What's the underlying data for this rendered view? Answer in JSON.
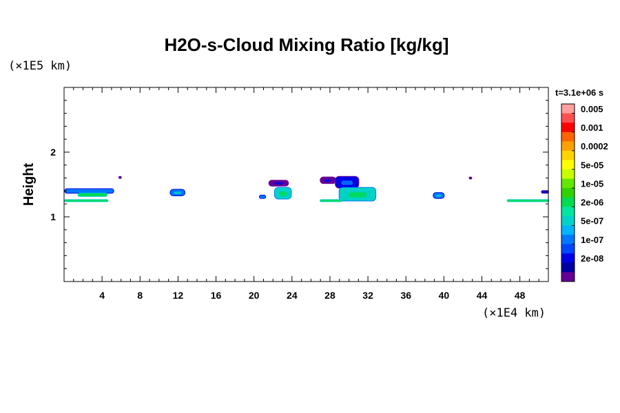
{
  "chart_data": {
    "type": "heatmap",
    "title": "H2O-s-Cloud Mixing Ratio [kg/kg]",
    "ylabel": "Height",
    "x_unit": "(×1E4 km)",
    "y_unit": "(×1E5 km)",
    "time_label": "t=3.1e+06 s",
    "xlim": [
      0,
      51
    ],
    "ylim": [
      0,
      3
    ],
    "xticks": [
      4,
      8,
      12,
      16,
      20,
      24,
      28,
      32,
      36,
      40,
      44,
      48
    ],
    "yticks": [
      1,
      2
    ],
    "colorbar": {
      "labels": [
        "0.005",
        "0.001",
        "0.0002",
        "5e-05",
        "1e-05",
        "2e-06",
        "5e-07",
        "1e-07",
        "2e-08"
      ],
      "colors": [
        "#ffa0a0",
        "#ff5050",
        "#ff0000",
        "#ff6400",
        "#ffa000",
        "#ffd200",
        "#ffff00",
        "#c8ff00",
        "#64e600",
        "#32d200",
        "#00dc50",
        "#00e6a0",
        "#00d2c8",
        "#00b4ff",
        "#0078ff",
        "#0046ff",
        "#0000e6",
        "#0000a0",
        "#640096"
      ]
    },
    "cloud_features": [
      {
        "x": [
          0.1,
          5.2
        ],
        "y": [
          1.37,
          1.43
        ],
        "level": "5e-07"
      },
      {
        "x": [
          1.5,
          4.5
        ],
        "y": [
          1.32,
          1.36
        ],
        "level": "1e-05"
      },
      {
        "x": [
          0.1,
          4.6
        ],
        "y": [
          1.24,
          1.26
        ],
        "level": "1e-05"
      },
      {
        "x": [
          11.2,
          12.7
        ],
        "y": [
          1.33,
          1.42
        ],
        "level": "5e-07"
      },
      {
        "x": [
          21.6,
          23.6
        ],
        "y": [
          1.48,
          1.56
        ],
        "level": "2e-08"
      },
      {
        "x": [
          22.2,
          23.9
        ],
        "y": [
          1.28,
          1.45
        ],
        "level": "2e-06"
      },
      {
        "x": [
          20.6,
          21.2
        ],
        "y": [
          1.29,
          1.33
        ],
        "level": "5e-07"
      },
      {
        "x": [
          27.0,
          28.6
        ],
        "y": [
          1.52,
          1.61
        ],
        "level": "2e-08"
      },
      {
        "x": [
          28.6,
          31.0
        ],
        "y": [
          1.45,
          1.62
        ],
        "level": "1e-07"
      },
      {
        "x": [
          29.0,
          32.8
        ],
        "y": [
          1.25,
          1.45
        ],
        "level": "2e-06"
      },
      {
        "x": [
          27.0,
          29.2
        ],
        "y": [
          1.24,
          1.26
        ],
        "level": "1e-05"
      },
      {
        "x": [
          38.9,
          40.0
        ],
        "y": [
          1.29,
          1.37
        ],
        "level": "5e-07"
      },
      {
        "x": [
          46.7,
          51.0
        ],
        "y": [
          1.24,
          1.26
        ],
        "level": "1e-05"
      },
      {
        "x": [
          50.3,
          51.0
        ],
        "y": [
          1.37,
          1.4
        ],
        "level": "1e-07"
      },
      {
        "x": [
          5.8,
          6.0
        ],
        "y": [
          1.6,
          1.62
        ],
        "level": "2e-08"
      },
      {
        "x": [
          42.7,
          42.9
        ],
        "y": [
          1.59,
          1.61
        ],
        "level": "2e-08"
      }
    ]
  }
}
